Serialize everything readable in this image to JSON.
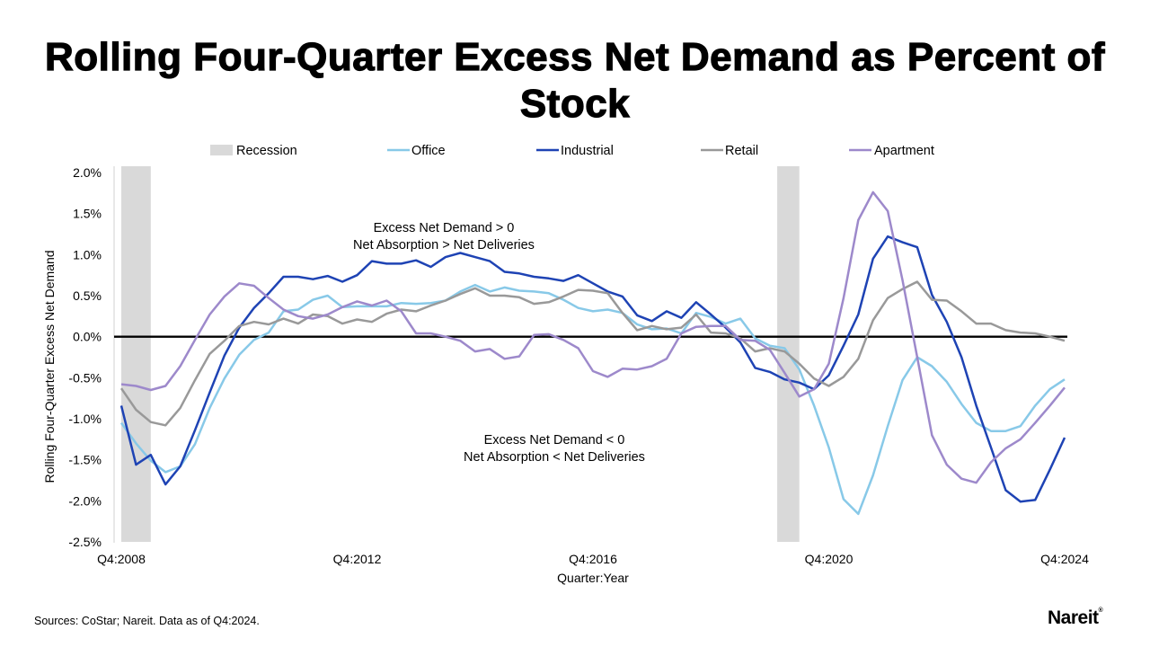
{
  "title": "Rolling Four-Quarter Excess Net Demand as Percent of Stock",
  "source": "Sources: CoStar; Nareit. Data as of Q4:2024.",
  "logo": "Nareit",
  "colors": {
    "recession": "#d9d9d9",
    "office": "#88c9e8",
    "industrial": "#1e43b4",
    "retail": "#999999",
    "apartment": "#9d89cb",
    "zero_line": "#000000"
  },
  "chart_data": {
    "type": "line",
    "title": "Rolling Four-Quarter Excess Net Demand as Percent of Stock",
    "xlabel": "Quarter:Year",
    "ylabel": "Rolling Four-Quarter Excess Net Demand",
    "x_range": [
      "Q4:2008",
      "Q4:2024"
    ],
    "x_ticks": [
      "Q4:2008",
      "Q4:2012",
      "Q4:2016",
      "Q4:2020",
      "Q4:2024"
    ],
    "ylim": [
      -2.5,
      2.0
    ],
    "y_ticks": [
      "2.0%",
      "1.5%",
      "1.0%",
      "0.5%",
      "0.0%",
      "-0.5%",
      "-1.0%",
      "-1.5%",
      "-2.0%",
      "-2.5%"
    ],
    "y_unit": "%",
    "grid": false,
    "legend_position": "top",
    "recession_periods": [
      [
        "Q4:2008",
        "Q2:2009"
      ],
      [
        "Q1:2020",
        "Q2:2020"
      ]
    ],
    "annotations": [
      {
        "line1": "Excess Net Demand > 0",
        "line2": "Net Absorption > Net Deliveries"
      },
      {
        "line1": "Excess Net Demand < 0",
        "line2": "Net Absorption < Net Deliveries"
      }
    ],
    "legend": [
      "Recession",
      "Office",
      "Industrial",
      "Retail",
      "Apartment"
    ],
    "series": [
      {
        "name": "Office",
        "key": "office",
        "values": [
          -1.05,
          -1.3,
          -1.51,
          -1.65,
          -1.58,
          -1.31,
          -0.87,
          -0.51,
          -0.22,
          -0.04,
          0.05,
          0.31,
          0.33,
          0.45,
          0.5,
          0.36,
          0.37,
          0.37,
          0.37,
          0.41,
          0.4,
          0.41,
          0.44,
          0.55,
          0.63,
          0.55,
          0.6,
          0.56,
          0.55,
          0.53,
          0.45,
          0.35,
          0.31,
          0.33,
          0.29,
          0.15,
          0.09,
          0.1,
          0.04,
          0.29,
          0.24,
          0.16,
          0.22,
          -0.02,
          -0.11,
          -0.14,
          -0.4,
          -0.84,
          -1.35,
          -1.98,
          -2.16,
          -1.69,
          -1.09,
          -0.53,
          -0.25,
          -0.36,
          -0.55,
          -0.82,
          -1.05,
          -1.15,
          -1.15,
          -1.09,
          -0.84,
          -0.64,
          -0.52
        ]
      },
      {
        "name": "Industrial",
        "key": "industrial",
        "values": [
          -0.84,
          -1.56,
          -1.44,
          -1.8,
          -1.58,
          -1.14,
          -0.68,
          -0.23,
          0.11,
          0.35,
          0.53,
          0.73,
          0.73,
          0.7,
          0.74,
          0.67,
          0.75,
          0.92,
          0.89,
          0.89,
          0.93,
          0.85,
          0.97,
          1.02,
          0.97,
          0.92,
          0.79,
          0.77,
          0.73,
          0.71,
          0.68,
          0.75,
          0.65,
          0.55,
          0.49,
          0.26,
          0.19,
          0.31,
          0.23,
          0.42,
          0.27,
          0.11,
          -0.07,
          -0.38,
          -0.43,
          -0.52,
          -0.56,
          -0.64,
          -0.47,
          -0.11,
          0.27,
          0.95,
          1.22,
          1.15,
          1.09,
          0.51,
          0.18,
          -0.25,
          -0.84,
          -1.35,
          -1.87,
          -2.01,
          -1.99,
          -1.62,
          -1.23
        ]
      },
      {
        "name": "Retail",
        "key": "retail",
        "values": [
          -0.63,
          -0.89,
          -1.04,
          -1.08,
          -0.87,
          -0.53,
          -0.21,
          -0.05,
          0.13,
          0.18,
          0.15,
          0.22,
          0.16,
          0.27,
          0.25,
          0.16,
          0.21,
          0.18,
          0.28,
          0.33,
          0.31,
          0.38,
          0.44,
          0.52,
          0.59,
          0.5,
          0.5,
          0.48,
          0.4,
          0.42,
          0.49,
          0.57,
          0.56,
          0.53,
          0.29,
          0.08,
          0.13,
          0.09,
          0.11,
          0.27,
          0.05,
          0.04,
          -0.02,
          -0.18,
          -0.14,
          -0.18,
          -0.33,
          -0.51,
          -0.6,
          -0.49,
          -0.27,
          0.2,
          0.47,
          0.58,
          0.67,
          0.45,
          0.44,
          0.31,
          0.16,
          0.16,
          0.08,
          0.05,
          0.04,
          0.0,
          -0.05
        ]
      },
      {
        "name": "Apartment",
        "key": "apartment",
        "values": [
          -0.58,
          -0.6,
          -0.65,
          -0.6,
          -0.36,
          -0.04,
          0.27,
          0.49,
          0.65,
          0.62,
          0.47,
          0.33,
          0.25,
          0.22,
          0.27,
          0.36,
          0.43,
          0.38,
          0.44,
          0.31,
          0.04,
          0.04,
          0.0,
          -0.05,
          -0.18,
          -0.15,
          -0.27,
          -0.24,
          0.02,
          0.03,
          -0.04,
          -0.14,
          -0.42,
          -0.49,
          -0.39,
          -0.4,
          -0.36,
          -0.27,
          0.04,
          0.12,
          0.13,
          0.13,
          -0.04,
          -0.05,
          -0.16,
          -0.44,
          -0.73,
          -0.64,
          -0.33,
          0.47,
          1.42,
          1.76,
          1.53,
          0.69,
          -0.25,
          -1.2,
          -1.56,
          -1.73,
          -1.78,
          -1.53,
          -1.36,
          -1.25,
          -1.05,
          -0.84,
          -0.62
        ]
      }
    ]
  }
}
